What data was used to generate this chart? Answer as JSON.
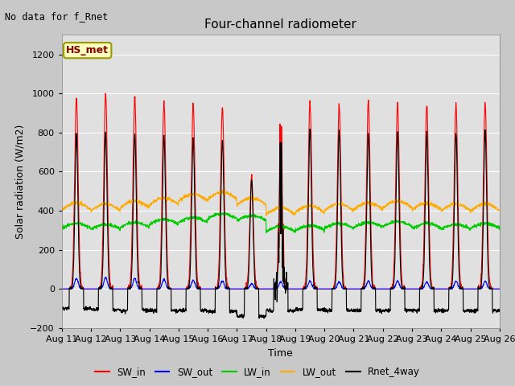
{
  "title": "Four-channel radiometer",
  "top_left_text": "No data for f_Rnet",
  "annotation_box": "HS_met",
  "ylabel": "Solar radiation (W/m2)",
  "xlabel": "Time",
  "ylim": [
    -200,
    1300
  ],
  "yticks": [
    -200,
    0,
    200,
    400,
    600,
    800,
    1000,
    1200
  ],
  "xtick_labels": [
    "Aug 11",
    "Aug 12",
    "Aug 13",
    "Aug 14",
    "Aug 15",
    "Aug 16",
    "Aug 17",
    "Aug 18",
    "Aug 19",
    "Aug 20",
    "Aug 21",
    "Aug 22",
    "Aug 23",
    "Aug 24",
    "Aug 25",
    "Aug 26"
  ],
  "legend_entries": [
    "SW_in",
    "SW_out",
    "LW_in",
    "LW_out",
    "Rnet_4way"
  ],
  "legend_colors": [
    "#ff0000",
    "#0000ff",
    "#00cc00",
    "#ffaa00",
    "#000000"
  ],
  "fig_bg_color": "#c8c8c8",
  "plot_bg_color": "#e0e0e0",
  "SW_in_peaks": [
    980,
    1000,
    980,
    960,
    950,
    930,
    580,
    930,
    960,
    940,
    960,
    950,
    940,
    940,
    950
  ],
  "SW_out_peaks": [
    60,
    65,
    60,
    55,
    50,
    45,
    30,
    40,
    45,
    40,
    45,
    45,
    40,
    45,
    45
  ],
  "LW_in_bases": [
    310,
    305,
    315,
    330,
    340,
    360,
    350,
    295,
    300,
    310,
    315,
    320,
    310,
    305,
    310
  ],
  "LW_out_bases": [
    405,
    400,
    415,
    430,
    450,
    460,
    430,
    380,
    390,
    400,
    405,
    415,
    405,
    400,
    400
  ],
  "Rnet_peaks": [
    790,
    800,
    790,
    780,
    770,
    760,
    560,
    810,
    820,
    810,
    800,
    800,
    800,
    800,
    810
  ],
  "Rnet_night_vals": [
    -100,
    -105,
    -110,
    -110,
    -110,
    -115,
    -140,
    -110,
    -105,
    -110,
    -110,
    -110,
    -110,
    -110,
    -110
  ],
  "cloudy_day": 7,
  "title_fontsize": 11,
  "label_fontsize": 9,
  "tick_fontsize": 8
}
